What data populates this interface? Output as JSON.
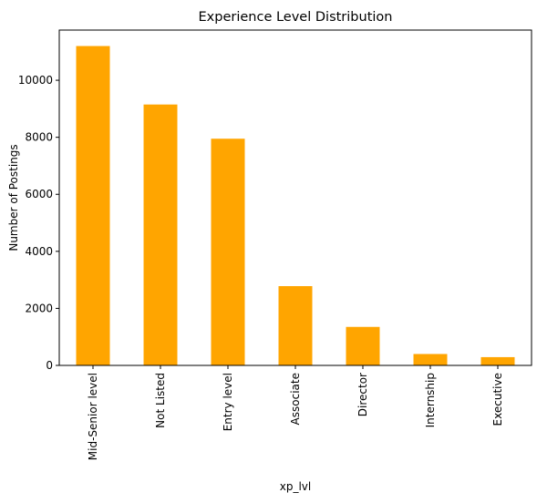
{
  "chart_data": {
    "type": "bar",
    "title": "Experience Level Distribution",
    "xlabel": "xp_lvl",
    "ylabel": "Number of Postings",
    "categories": [
      "Mid-Senior level",
      "Not Listed",
      "Entry level",
      "Associate",
      "Director",
      "Internship",
      "Executive"
    ],
    "values": [
      11200,
      9150,
      7950,
      2780,
      1350,
      400,
      290
    ],
    "ylim": [
      0,
      11760
    ],
    "yticks": [
      0,
      2000,
      4000,
      6000,
      8000,
      10000
    ],
    "bar_color": "#ffa500",
    "grid": false,
    "legend": "none"
  }
}
